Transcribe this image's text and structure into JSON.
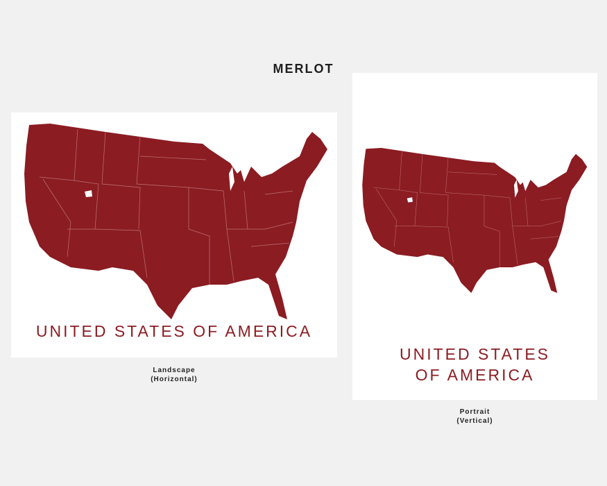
{
  "heading": "MERLOT",
  "colors": {
    "map": "#8b1c22",
    "background": "#f0f1f0",
    "card": "#ffffff"
  },
  "landscape": {
    "title": "UNITED STATES OF AMERICA",
    "caption_line1": "Landscape",
    "caption_line2": "(Horizontal)"
  },
  "portrait": {
    "title_line1": "UNITED STATES",
    "title_line2": "OF AMERICA",
    "caption_line1": "Portrait",
    "caption_line2": "(Vertical)"
  }
}
